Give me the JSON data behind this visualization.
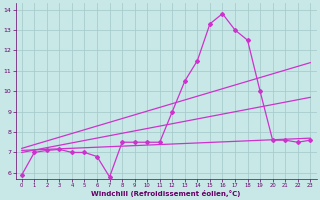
{
  "bg_color": "#c8e8e8",
  "grid_color": "#a8cccc",
  "line_color": "#cc33cc",
  "xlabel": "Windchill (Refroidissement éolien,°C)",
  "xlabel_color": "#660066",
  "tick_color": "#660066",
  "xlim": [
    -0.5,
    23.5
  ],
  "ylim": [
    5.7,
    14.3
  ],
  "yticks": [
    6,
    7,
    8,
    9,
    10,
    11,
    12,
    13,
    14
  ],
  "xticks": [
    0,
    1,
    2,
    3,
    4,
    5,
    6,
    7,
    8,
    9,
    10,
    11,
    12,
    13,
    14,
    15,
    16,
    17,
    18,
    19,
    20,
    21,
    22,
    23
  ],
  "series1_x": [
    0,
    1,
    2,
    3,
    4,
    5,
    6,
    7,
    8,
    9,
    10,
    11,
    12,
    13,
    14,
    15,
    16,
    17,
    18,
    19,
    20,
    21,
    22,
    23
  ],
  "series1_y": [
    5.9,
    7.0,
    7.1,
    7.15,
    7.0,
    7.0,
    6.8,
    5.8,
    7.5,
    7.5,
    7.5,
    7.5,
    9.0,
    10.5,
    11.5,
    13.3,
    13.8,
    13.0,
    12.5,
    10.0,
    7.6,
    7.6,
    7.5,
    7.6
  ],
  "series2_x": [
    0,
    23
  ],
  "series2_y": [
    7.1,
    7.7
  ],
  "series3_x": [
    0,
    23
  ],
  "series3_y": [
    7.2,
    11.4
  ],
  "series4_x": [
    0,
    23
  ],
  "series4_y": [
    7.0,
    9.7
  ],
  "marker": "D",
  "markersize": 2.0,
  "linewidth": 0.9
}
